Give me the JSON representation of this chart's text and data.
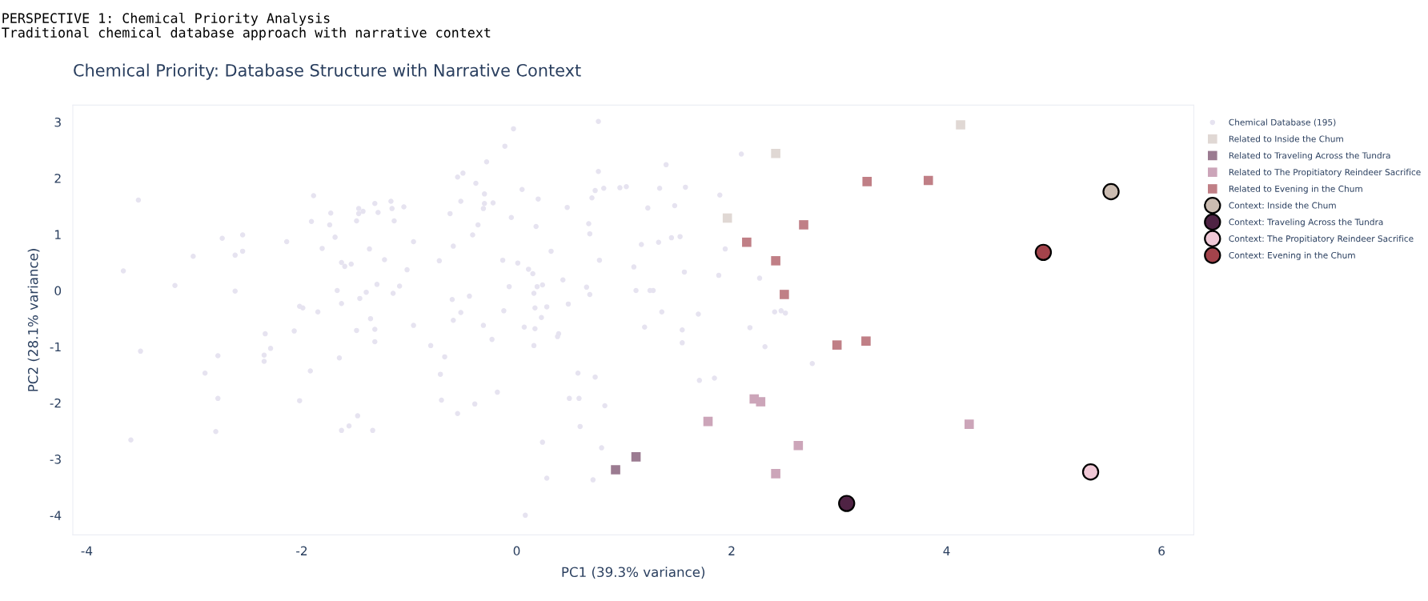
{
  "chart_data": {
    "type": "scatter",
    "title": "Chemical Priority: Database Structure with Narrative Context",
    "annotations": [
      "PERSPECTIVE 1: Chemical Priority Analysis",
      "Traditional chemical database approach with narrative context"
    ],
    "xlabel": "PC1 (39.3% variance)",
    "ylabel": "PC2 (28.1% variance)",
    "xlim": [
      -4.13,
      6.3
    ],
    "ylim": [
      -4.35,
      3.3
    ],
    "xticks": [
      -4,
      -2,
      0,
      2,
      4,
      6
    ],
    "yticks": [
      -4,
      -3,
      -2,
      -1,
      0,
      1,
      2,
      3
    ],
    "grid": false,
    "legend": "top right",
    "series": [
      {
        "name": "Chemical Database (195)",
        "color": "#e6e3f0",
        "marker": "circle",
        "x": [
          -3.52,
          -3.66,
          -3.59,
          -3.5,
          -3.18,
          -3.01,
          -2.74,
          -2.55,
          -2.62,
          -2.55,
          -2.62,
          -2.78,
          -2.9,
          -2.78,
          -2.8,
          -2.34,
          -2.29,
          -2.35,
          -2.35,
          -2.14,
          -2.07,
          -2.02,
          -1.99,
          -1.92,
          -2.02,
          -1.91,
          -1.89,
          -1.85,
          -1.81,
          -1.73,
          -1.74,
          -1.69,
          -1.63,
          -1.6,
          -1.54,
          -1.67,
          -1.63,
          -1.65,
          -1.49,
          -1.46,
          -1.4,
          -1.36,
          -1.32,
          -1.32,
          -1.49,
          -1.47,
          -1.47,
          -1.43,
          -1.32,
          -1.29,
          -1.37,
          -1.3,
          -1.23,
          -1.17,
          -1.16,
          -1.14,
          -1.05,
          -1.15,
          -1.09,
          -1.02,
          -0.96,
          -0.96,
          -0.8,
          -0.67,
          -0.71,
          -0.7,
          -0.55,
          -0.39,
          -0.18,
          -0.72,
          -0.62,
          -0.59,
          -0.6,
          -0.52,
          -0.59,
          -0.44,
          -0.55,
          -0.5,
          -0.38,
          -0.52,
          -0.3,
          -0.3,
          -0.31,
          -0.22,
          -0.28,
          -0.11,
          -0.03,
          -0.36,
          -0.41,
          -0.05,
          -0.13,
          -0.07,
          -0.12,
          -0.31,
          -0.23,
          -1.63,
          -1.56,
          -1.48,
          -1.34,
          0.76,
          0.05,
          0.2,
          0.18,
          0.32,
          0.01,
          0.11,
          0.15,
          0.19,
          0.24,
          0.16,
          0.17,
          0.28,
          0.23,
          0.07,
          0.17,
          0.16,
          0.39,
          0.38,
          0.43,
          0.48,
          0.47,
          0.67,
          0.68,
          0.7,
          0.73,
          0.81,
          0.76,
          0.77,
          0.65,
          0.68,
          0.57,
          0.73,
          0.49,
          0.58,
          0.82,
          0.59,
          0.24,
          0.79,
          0.28,
          0.71,
          0.08,
          0.96,
          1.02,
          1.33,
          1.39,
          1.57,
          1.22,
          1.47,
          1.16,
          1.32,
          1.44,
          1.52,
          1.09,
          1.56,
          1.11,
          1.24,
          1.27,
          1.35,
          1.19,
          1.54,
          1.54,
          1.69,
          1.7,
          1.84,
          1.89,
          2.09,
          1.94,
          1.88,
          2.26,
          2.17,
          2.31,
          2.4,
          2.46,
          2.5,
          2.75
        ],
        "values": [
          1.61,
          0.35,
          -2.66,
          -1.08,
          0.09,
          0.61,
          0.93,
          0.99,
          0.63,
          0.7,
          -0.01,
          -1.16,
          -1.47,
          -1.92,
          -2.51,
          -0.77,
          -1.03,
          -1.15,
          -1.26,
          0.87,
          -0.72,
          -0.28,
          -0.31,
          -1.43,
          -1.96,
          1.23,
          1.69,
          -0.38,
          0.75,
          1.38,
          1.17,
          0.95,
          0.5,
          0.43,
          0.47,
          0.0,
          -0.23,
          -1.2,
          -0.71,
          -0.14,
          -0.03,
          -0.5,
          -0.69,
          -0.91,
          1.24,
          1.37,
          1.46,
          1.41,
          1.55,
          1.39,
          0.74,
          0.11,
          0.55,
          1.59,
          1.46,
          1.24,
          1.49,
          -0.05,
          0.08,
          0.37,
          0.87,
          -0.62,
          -0.98,
          -1.18,
          -1.49,
          -1.95,
          -2.19,
          -2.02,
          -1.81,
          0.53,
          1.37,
          0.79,
          -0.16,
          -0.39,
          -0.53,
          -0.1,
          2.02,
          2.09,
          1.91,
          1.59,
          1.72,
          1.55,
          1.46,
          1.56,
          2.29,
          2.57,
          2.88,
          1.17,
          0.99,
          1.3,
          0.54,
          0.07,
          -0.36,
          -0.62,
          -0.87,
          -2.49,
          -2.41,
          -2.23,
          -2.49,
          3.01,
          1.8,
          1.63,
          1.14,
          0.7,
          0.49,
          0.38,
          0.3,
          0.07,
          0.1,
          -0.05,
          -0.31,
          -0.29,
          -0.48,
          -0.65,
          -0.68,
          -0.98,
          -0.77,
          -0.82,
          0.19,
          -0.24,
          1.48,
          1.19,
          1.01,
          1.65,
          1.78,
          1.82,
          2.12,
          0.54,
          0.06,
          -0.07,
          -1.47,
          -1.54,
          -1.92,
          -1.92,
          -2.05,
          -2.42,
          -2.7,
          -2.8,
          -3.34,
          -3.37,
          -4.0,
          1.83,
          1.85,
          1.82,
          2.24,
          1.84,
          1.47,
          1.51,
          0.82,
          0.86,
          0.94,
          0.96,
          0.42,
          0.33,
          0.0,
          0.0,
          0.0,
          -0.38,
          -0.65,
          -0.7,
          -0.93,
          -0.42,
          -1.6,
          -1.56,
          1.7,
          2.43,
          0.74,
          0.27,
          0.22,
          -0.66,
          -1.0,
          -0.38,
          -0.36,
          -0.4,
          -1.3
        ]
      },
      {
        "name": "Related to Inside the Chum",
        "color": "#e0d8d4",
        "marker": "square",
        "x": [
          2.41,
          1.96,
          4.13
        ],
        "values": [
          2.44,
          1.29,
          2.95
        ]
      },
      {
        "name": "Related to Traveling Across the Tundra",
        "color": "#9b7b91",
        "marker": "square",
        "x": [
          0.92,
          1.11
        ],
        "values": [
          -3.19,
          -2.96
        ]
      },
      {
        "name": "Related to The Propitiatory Reindeer Sacrifice",
        "color": "#cca5b9",
        "marker": "square",
        "x": [
          2.21,
          2.27,
          1.78,
          2.62,
          2.41,
          4.21
        ],
        "values": [
          -1.93,
          -1.98,
          -2.33,
          -2.76,
          -3.26,
          -2.38
        ]
      },
      {
        "name": "Related to Evening in the Chum",
        "color": "#c07f86",
        "marker": "square",
        "x": [
          3.26,
          2.67,
          2.14,
          2.41,
          2.49,
          2.98,
          3.25,
          3.83
        ],
        "values": [
          1.94,
          1.17,
          0.86,
          0.53,
          -0.07,
          -0.97,
          -0.9,
          1.96
        ]
      },
      {
        "name": "Context: Inside the Chum",
        "color": "#cbbcb1",
        "marker": "circle",
        "x": [
          5.53
        ],
        "values": [
          1.76
        ]
      },
      {
        "name": "Context: Traveling Across the Tundra",
        "color": "#4f2344",
        "marker": "circle",
        "x": [
          3.07
        ],
        "values": [
          -3.79
        ]
      },
      {
        "name": "Context: The Propitiatory Reindeer Sacrifice",
        "color": "#f0c8d6",
        "marker": "circle",
        "x": [
          5.34
        ],
        "values": [
          -3.23
        ]
      },
      {
        "name": "Context: Evening in the Chum",
        "color": "#a3434b",
        "marker": "circle",
        "x": [
          4.9
        ],
        "values": [
          0.68
        ]
      }
    ]
  }
}
